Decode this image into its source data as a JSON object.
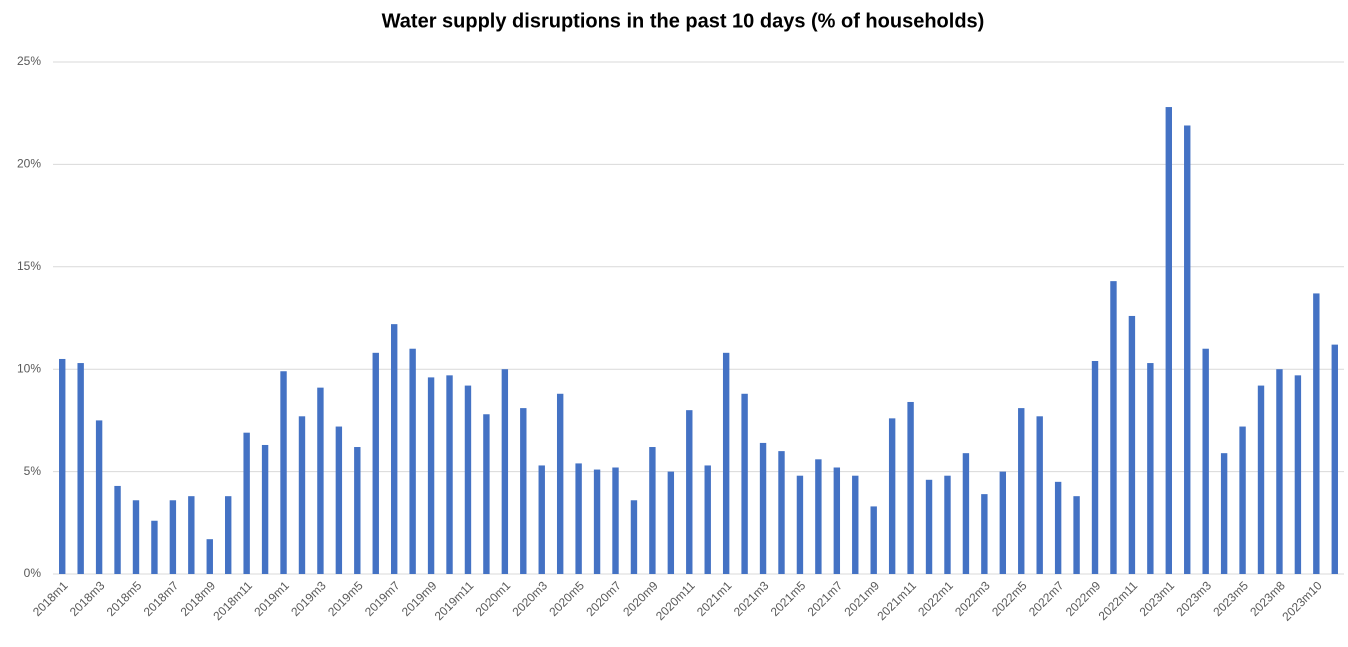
{
  "chart_data": {
    "type": "bar",
    "title": "Water supply disruptions in the past 10 days (% of households)",
    "categories": [
      "2018m1",
      null,
      "2018m3",
      null,
      "2018m5",
      null,
      "2018m7",
      null,
      "2018m9",
      null,
      "2018m11",
      null,
      "2019m1",
      null,
      "2019m3",
      null,
      "2019m5",
      null,
      "2019m7",
      null,
      "2019m9",
      null,
      "2019m11",
      null,
      "2020m1",
      null,
      "2020m3",
      null,
      "2020m5",
      null,
      "2020m7",
      null,
      "2020m9",
      null,
      "2020m11",
      null,
      "2021m1",
      null,
      "2021m3",
      null,
      "2021m5",
      null,
      "2021m7",
      null,
      "2021m9",
      null,
      "2021m11",
      null,
      "2022m1",
      null,
      "2022m3",
      null,
      "2022m5",
      null,
      "2022m7",
      null,
      "2022m9",
      null,
      "2022m11",
      null,
      "2023m1",
      null,
      "2023m3",
      null,
      "2023m5",
      null,
      "2023m8",
      null,
      "2023m10",
      null
    ],
    "values": [
      10.5,
      10.3,
      7.5,
      4.3,
      3.6,
      2.6,
      3.6,
      3.8,
      1.7,
      3.8,
      6.9,
      6.3,
      9.9,
      7.7,
      9.1,
      7.2,
      6.2,
      10.8,
      12.2,
      11.0,
      9.6,
      9.7,
      9.2,
      7.8,
      10.0,
      8.1,
      5.3,
      8.8,
      5.4,
      5.1,
      5.2,
      3.6,
      6.2,
      5.0,
      8.0,
      5.3,
      10.8,
      8.8,
      6.4,
      6.0,
      4.8,
      5.6,
      5.2,
      4.8,
      3.3,
      7.6,
      8.4,
      4.6,
      4.8,
      5.9,
      3.9,
      5.0,
      8.1,
      7.7,
      4.5,
      3.8,
      10.4,
      14.3,
      12.6,
      10.3,
      22.8,
      21.9,
      11.0,
      5.9,
      7.2,
      9.2,
      10.0,
      9.7,
      13.7,
      11.2
    ],
    "color": "#4472c4",
    "ylim": [
      0,
      25
    ],
    "yticks": [
      {
        "value": 0,
        "label": "0%"
      },
      {
        "value": 5,
        "label": "5%"
      },
      {
        "value": 10,
        "label": "10%"
      },
      {
        "value": 15,
        "label": "15%"
      },
      {
        "value": 20,
        "label": "20%"
      },
      {
        "value": 25,
        "label": "25%"
      }
    ],
    "grid": true
  }
}
